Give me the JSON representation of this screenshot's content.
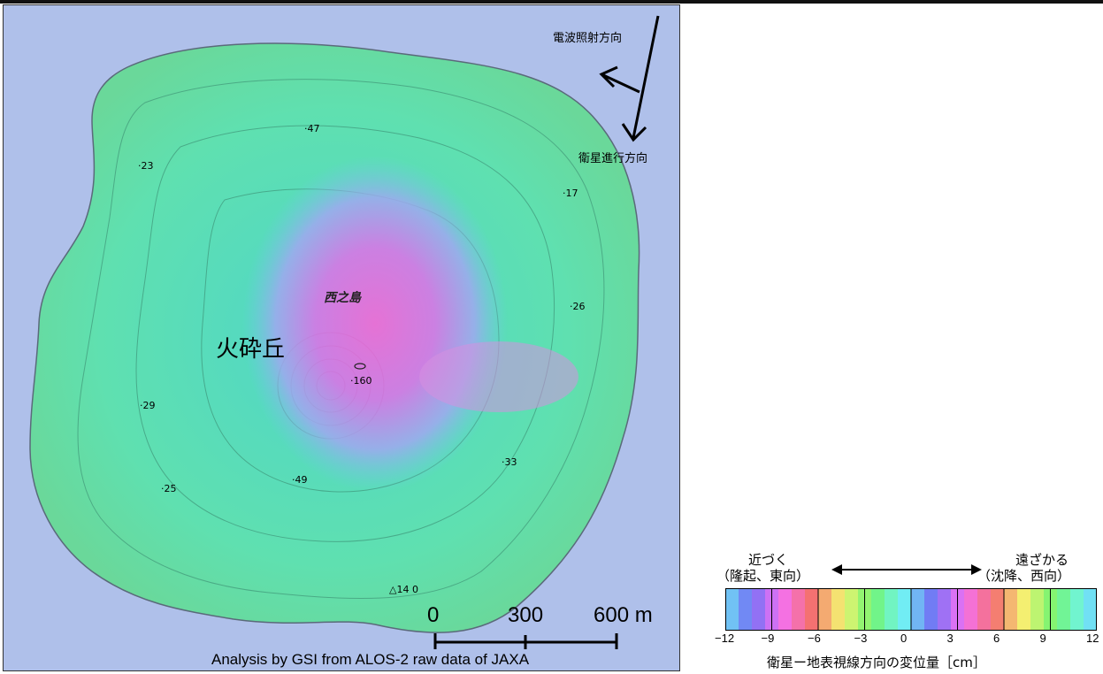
{
  "map": {
    "radar_direction_label": "電波照射方向",
    "satellite_direction_label": "衛星進行方向",
    "crater_label": "火砕丘",
    "island_label": "西之島",
    "elevations": {
      "e47": "47",
      "e23": "23",
      "e17": "17",
      "e26": "26",
      "e160": "160",
      "e29": "29",
      "e33": "33",
      "e49": "49",
      "e25": "25",
      "e14": "14",
      "e0": "0"
    },
    "scale": {
      "s0": "0",
      "s300": "300",
      "s600": "600 m"
    },
    "credit": "Analysis by GSI from ALOS-2 raw data of JAXA",
    "colors": {
      "sea": "#afc0ea",
      "land": "#57e0b5",
      "uplift": "#ff55d0"
    }
  },
  "legend": {
    "near_label": "近づく",
    "near_sub": "（隆起、東向）",
    "far_label": "遠ざかる",
    "far_sub": "（沈降、西向）",
    "ticks": [
      "−12",
      "−9",
      "−6",
      "−3",
      "0",
      "3",
      "6",
      "9",
      "12"
    ],
    "axis_title": "衛星ー地表視線方向の変位量［cm］",
    "colorbar_min_cm": -12,
    "colorbar_max_cm": 12,
    "cycle_cm": 11.8
  }
}
